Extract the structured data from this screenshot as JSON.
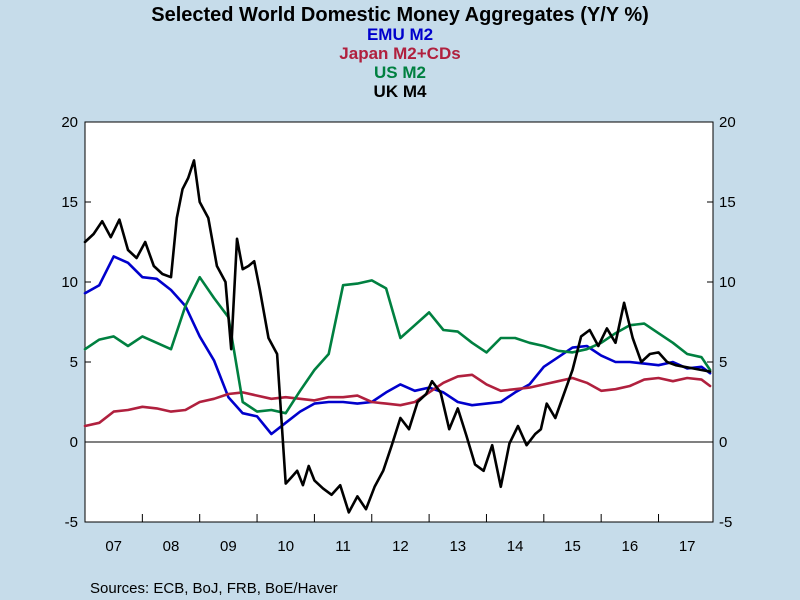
{
  "chart_data": {
    "type": "line",
    "title": "Selected World Domestic Money Aggregates (Y/Y %)",
    "legend_placement": "top-center",
    "source": "Sources:  ECB, BoJ, FRB, BoE/Haver",
    "categories": [
      "07",
      "08",
      "09",
      "10",
      "11",
      "12",
      "13",
      "14",
      "15",
      "16",
      "17"
    ],
    "ylim": [
      -5,
      20
    ],
    "yticks": [
      -5,
      0,
      5,
      10,
      15,
      20
    ],
    "xlim": [
      2007.0,
      2017.95
    ],
    "grid": false,
    "zero_line": true,
    "series": [
      {
        "name": "EMU M2",
        "color": "#0000cc",
        "x": [
          2007.0,
          2007.25,
          2007.5,
          2007.75,
          2008.0,
          2008.25,
          2008.5,
          2008.75,
          2009.0,
          2009.25,
          2009.5,
          2009.75,
          2010.0,
          2010.25,
          2010.5,
          2010.75,
          2011.0,
          2011.25,
          2011.5,
          2011.75,
          2012.0,
          2012.25,
          2012.5,
          2012.75,
          2013.0,
          2013.25,
          2013.5,
          2013.75,
          2014.0,
          2014.25,
          2014.5,
          2014.75,
          2015.0,
          2015.25,
          2015.5,
          2015.75,
          2016.0,
          2016.25,
          2016.5,
          2016.75,
          2017.0,
          2017.25,
          2017.5,
          2017.75,
          2017.9
        ],
        "y": [
          9.3,
          9.8,
          11.6,
          11.2,
          10.3,
          10.2,
          9.5,
          8.5,
          6.6,
          5.1,
          2.8,
          1.8,
          1.6,
          0.5,
          1.2,
          1.9,
          2.4,
          2.5,
          2.5,
          2.4,
          2.5,
          3.1,
          3.6,
          3.2,
          3.4,
          3.1,
          2.5,
          2.3,
          2.4,
          2.5,
          3.1,
          3.6,
          4.7,
          5.3,
          5.9,
          6.0,
          5.4,
          5.0,
          5.0,
          4.9,
          4.8,
          5.0,
          4.6,
          4.7,
          4.3
        ]
      },
      {
        "name": "Japan M2+CDs",
        "color": "#b0203e",
        "x": [
          2007.0,
          2007.25,
          2007.5,
          2007.75,
          2008.0,
          2008.25,
          2008.5,
          2008.75,
          2009.0,
          2009.25,
          2009.5,
          2009.75,
          2010.0,
          2010.25,
          2010.5,
          2010.75,
          2011.0,
          2011.25,
          2011.5,
          2011.75,
          2012.0,
          2012.25,
          2012.5,
          2012.75,
          2013.0,
          2013.25,
          2013.5,
          2013.75,
          2014.0,
          2014.25,
          2014.5,
          2014.75,
          2015.0,
          2015.25,
          2015.5,
          2015.75,
          2016.0,
          2016.25,
          2016.5,
          2016.75,
          2017.0,
          2017.25,
          2017.5,
          2017.75,
          2017.9
        ],
        "y": [
          1.0,
          1.2,
          1.9,
          2.0,
          2.2,
          2.1,
          1.9,
          2.0,
          2.5,
          2.7,
          3.0,
          3.1,
          2.9,
          2.7,
          2.8,
          2.7,
          2.6,
          2.8,
          2.8,
          2.9,
          2.5,
          2.4,
          2.3,
          2.5,
          3.1,
          3.7,
          4.1,
          4.2,
          3.6,
          3.2,
          3.3,
          3.4,
          3.6,
          3.8,
          4.0,
          3.7,
          3.2,
          3.3,
          3.5,
          3.9,
          4.0,
          3.8,
          4.0,
          3.9,
          3.5
        ]
      },
      {
        "name": "US M2",
        "color": "#008040",
        "x": [
          2007.0,
          2007.25,
          2007.5,
          2007.75,
          2008.0,
          2008.25,
          2008.5,
          2008.75,
          2009.0,
          2009.25,
          2009.5,
          2009.75,
          2010.0,
          2010.25,
          2010.5,
          2010.75,
          2011.0,
          2011.25,
          2011.5,
          2011.75,
          2012.0,
          2012.25,
          2012.5,
          2012.75,
          2013.0,
          2013.25,
          2013.5,
          2013.75,
          2014.0,
          2014.25,
          2014.5,
          2014.75,
          2015.0,
          2015.25,
          2015.5,
          2015.75,
          2016.0,
          2016.25,
          2016.5,
          2016.75,
          2017.0,
          2017.25,
          2017.5,
          2017.75,
          2017.9
        ],
        "y": [
          5.8,
          6.4,
          6.6,
          6.0,
          6.6,
          6.2,
          5.8,
          8.5,
          10.3,
          9.0,
          7.8,
          2.5,
          1.9,
          2.0,
          1.8,
          3.2,
          4.5,
          5.5,
          9.8,
          9.9,
          10.1,
          9.6,
          6.5,
          7.3,
          8.1,
          7.0,
          6.9,
          6.2,
          5.6,
          6.5,
          6.5,
          6.2,
          6.0,
          5.7,
          5.6,
          5.8,
          6.2,
          6.8,
          7.3,
          7.4,
          6.8,
          6.2,
          5.5,
          5.3,
          4.5
        ]
      },
      {
        "name": "UK M4",
        "color": "#000000",
        "x": [
          2007.0,
          2007.15,
          2007.3,
          2007.45,
          2007.6,
          2007.75,
          2007.9,
          2008.05,
          2008.2,
          2008.35,
          2008.5,
          2008.6,
          2008.7,
          2008.8,
          2008.9,
          2009.0,
          2009.15,
          2009.3,
          2009.45,
          2009.55,
          2009.65,
          2009.75,
          2009.85,
          2009.95,
          2010.05,
          2010.2,
          2010.35,
          2010.5,
          2010.6,
          2010.7,
          2010.8,
          2010.9,
          2011.0,
          2011.15,
          2011.3,
          2011.45,
          2011.6,
          2011.75,
          2011.9,
          2012.05,
          2012.2,
          2012.35,
          2012.5,
          2012.65,
          2012.8,
          2012.95,
          2013.05,
          2013.2,
          2013.35,
          2013.5,
          2013.65,
          2013.8,
          2013.95,
          2014.1,
          2014.25,
          2014.4,
          2014.55,
          2014.7,
          2014.85,
          2014.95,
          2015.05,
          2015.2,
          2015.35,
          2015.5,
          2015.65,
          2015.8,
          2015.95,
          2016.1,
          2016.25,
          2016.4,
          2016.55,
          2016.7,
          2016.85,
          2017.0,
          2017.15,
          2017.3,
          2017.45,
          2017.6,
          2017.75,
          2017.9
        ],
        "y": [
          12.5,
          13.0,
          13.8,
          12.8,
          13.9,
          12.0,
          11.5,
          12.5,
          11.0,
          10.5,
          10.3,
          14.0,
          15.8,
          16.5,
          17.6,
          15.0,
          14.0,
          11.0,
          10.0,
          5.8,
          12.7,
          10.8,
          11.0,
          11.3,
          9.5,
          6.5,
          5.5,
          -2.6,
          -2.2,
          -1.8,
          -2.7,
          -1.5,
          -2.4,
          -2.9,
          -3.3,
          -2.7,
          -4.4,
          -3.4,
          -4.2,
          -2.8,
          -1.8,
          -0.2,
          1.5,
          0.8,
          2.5,
          3.0,
          3.8,
          3.1,
          0.8,
          2.1,
          0.4,
          -1.4,
          -1.8,
          -0.2,
          -2.8,
          -0.1,
          1.0,
          -0.2,
          0.5,
          0.8,
          2.4,
          1.5,
          3.0,
          4.5,
          6.6,
          7.0,
          6.0,
          7.1,
          6.2,
          8.7,
          6.5,
          5.0,
          5.5,
          5.6,
          5.0,
          4.8,
          4.7,
          4.6,
          4.5,
          4.4
        ]
      }
    ]
  }
}
